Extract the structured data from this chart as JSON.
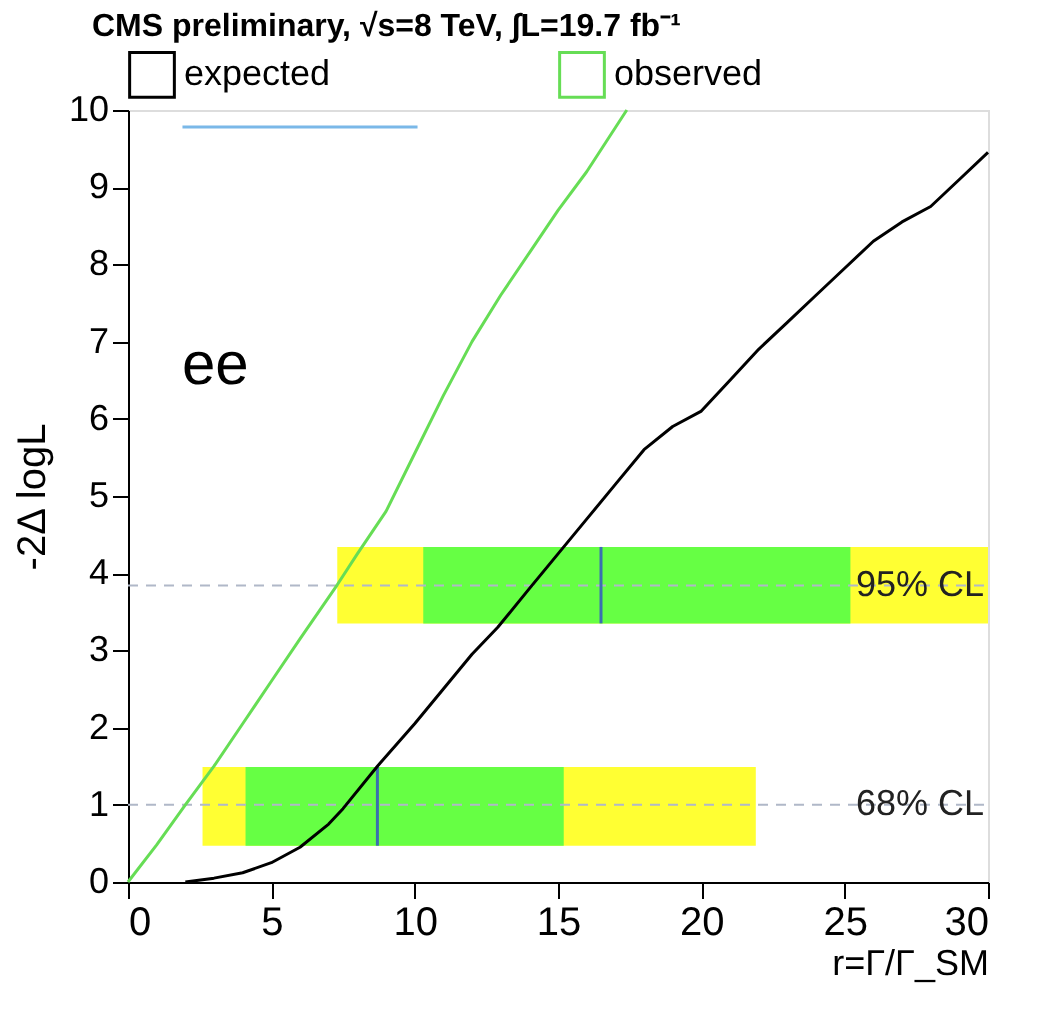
{
  "chart_data": {
    "type": "line",
    "title": "CMS preliminary, √s=8 TeV, ∫L=19.7 fb⁻¹",
    "xlabel": "r=Γ/Γ_SM",
    "ylabel": "-2Δ logL",
    "xlim": [
      0,
      30
    ],
    "xticks": [
      0,
      5,
      10,
      15,
      20,
      25,
      30
    ],
    "ylim": [
      0,
      10
    ],
    "yticks": [
      0,
      1,
      2,
      3,
      4,
      5,
      6,
      7,
      8,
      9,
      10
    ],
    "grid": false,
    "legend": "top",
    "marker": "none",
    "line_style": "solid",
    "annotations": [
      "ee"
    ],
    "ref_lines": [
      {
        "axis": "y",
        "value": 3.84,
        "label": "95% CL",
        "color": "#b0b8c8",
        "line_style": "dashed"
      },
      {
        "axis": "y",
        "value": 1,
        "label": "68% CL",
        "color": "#b0b8c8",
        "line_style": "dashed"
      }
    ],
    "series": [
      {
        "type": "area",
        "color": "#ffff33",
        "x": [
          7.3,
          30
        ],
        "values": [
          null,
          null
        ],
        "lower": [
          3.35,
          3.35
        ],
        "upper": [
          4.34,
          4.34
        ]
      },
      {
        "type": "area",
        "color": "#66ff44",
        "x": [
          10.3,
          25.2
        ],
        "values": [
          null,
          null
        ],
        "lower": [
          3.35,
          3.35
        ],
        "upper": [
          4.34,
          4.34
        ]
      },
      {
        "type": "area",
        "color": "#ffff33",
        "x": [
          2.6,
          21.9
        ],
        "values": [
          null,
          null
        ],
        "lower": [
          0.47,
          0.47
        ],
        "upper": [
          1.49,
          1.49
        ]
      },
      {
        "type": "area",
        "color": "#66ff44",
        "x": [
          4.1,
          15.2
        ],
        "values": [
          null,
          null
        ],
        "lower": [
          0.47,
          0.47
        ],
        "upper": [
          1.49,
          1.49
        ]
      },
      {
        "type": "line",
        "color": "#3a6fb0",
        "x": [
          16.5,
          16.5
        ],
        "values": [
          3.35,
          4.34
        ]
      },
      {
        "type": "line",
        "color": "#3a6fb0",
        "x": [
          8.7,
          8.7
        ],
        "values": [
          0.47,
          1.49
        ]
      },
      {
        "type": "line",
        "color": "#7ab8e8",
        "x": [
          1.9,
          10.1
        ],
        "values": [
          9.78,
          9.78
        ]
      },
      {
        "name": "expected",
        "color": "#000000",
        "x": [
          2,
          3,
          4,
          5,
          6,
          7,
          7.5,
          8.7,
          10,
          11,
          12,
          12.9,
          14,
          15,
          16,
          17,
          18,
          19,
          20,
          21,
          22,
          23,
          24,
          25,
          26,
          27,
          28,
          29,
          30
        ],
        "values": [
          0,
          0.05,
          0.12,
          0.25,
          0.45,
          0.75,
          0.95,
          1.5,
          2.05,
          2.5,
          2.95,
          3.3,
          3.8,
          4.25,
          4.7,
          5.15,
          5.6,
          5.9,
          6.1,
          6.5,
          6.9,
          7.25,
          7.6,
          7.95,
          8.3,
          8.55,
          8.75,
          9.1,
          9.45
        ]
      },
      {
        "name": "observed",
        "color": "#66dd55",
        "x": [
          0,
          1,
          2,
          3,
          4,
          5,
          6,
          7.3,
          8,
          9,
          10,
          11,
          12,
          13,
          14,
          15,
          16,
          17.4
        ],
        "values": [
          0,
          0.48,
          1.0,
          1.5,
          2.05,
          2.6,
          3.15,
          3.85,
          4.25,
          4.8,
          5.55,
          6.3,
          7.0,
          7.6,
          8.15,
          8.7,
          9.2,
          10
        ]
      }
    ]
  }
}
